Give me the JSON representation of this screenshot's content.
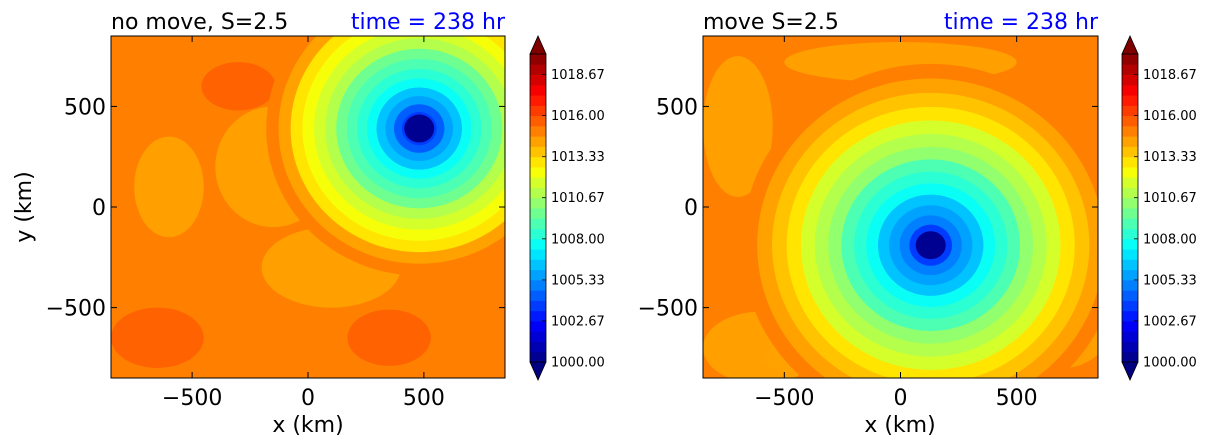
{
  "chart_data": [
    {
      "type": "heatmap",
      "title_left": "no move, S=2.5",
      "title_right": "time = 238 hr",
      "xlabel": "x (km)",
      "ylabel": "y (km)",
      "xlim": [
        -850,
        850
      ],
      "ylim": [
        -850,
        850
      ],
      "xticks": [
        -500,
        0,
        500
      ],
      "xtick_labels": [
        "−500",
        "0",
        "500"
      ],
      "yticks": [
        -500,
        0,
        500
      ],
      "ytick_labels": [
        "−500",
        "0",
        "500"
      ],
      "vortex_center": [
        480,
        390
      ],
      "center_value": 1000.0,
      "background_value": 1014.9
    },
    {
      "type": "heatmap",
      "title_left": "move S=2.5",
      "title_right": "time = 238 hr",
      "xlabel": "x (km)",
      "ylabel": "",
      "xlim": [
        -850,
        850
      ],
      "ylim": [
        -850,
        850
      ],
      "xticks": [
        -500,
        0,
        500
      ],
      "xtick_labels": [
        "−500",
        "0",
        "500"
      ],
      "yticks": [
        -500,
        0,
        500
      ],
      "ytick_labels": [
        "−500",
        "0",
        "500"
      ],
      "vortex_center": [
        130,
        -190
      ],
      "center_value": 1000.0,
      "background_value": 1015.2
    }
  ],
  "colorbar": {
    "min": 1000.0,
    "max": 1020.0,
    "levels": 30,
    "tick_values": [
      1000.0,
      1002.67,
      1005.33,
      1008.0,
      1010.67,
      1013.33,
      1016.0,
      1018.67
    ],
    "tick_labels": [
      "1000.00",
      "1002.67",
      "1005.33",
      "1008.00",
      "1010.67",
      "1013.33",
      "1016.00",
      "1018.67"
    ],
    "colormap": "jet"
  },
  "colors": {
    "title_right": "#0000ff",
    "text": "#000000"
  }
}
